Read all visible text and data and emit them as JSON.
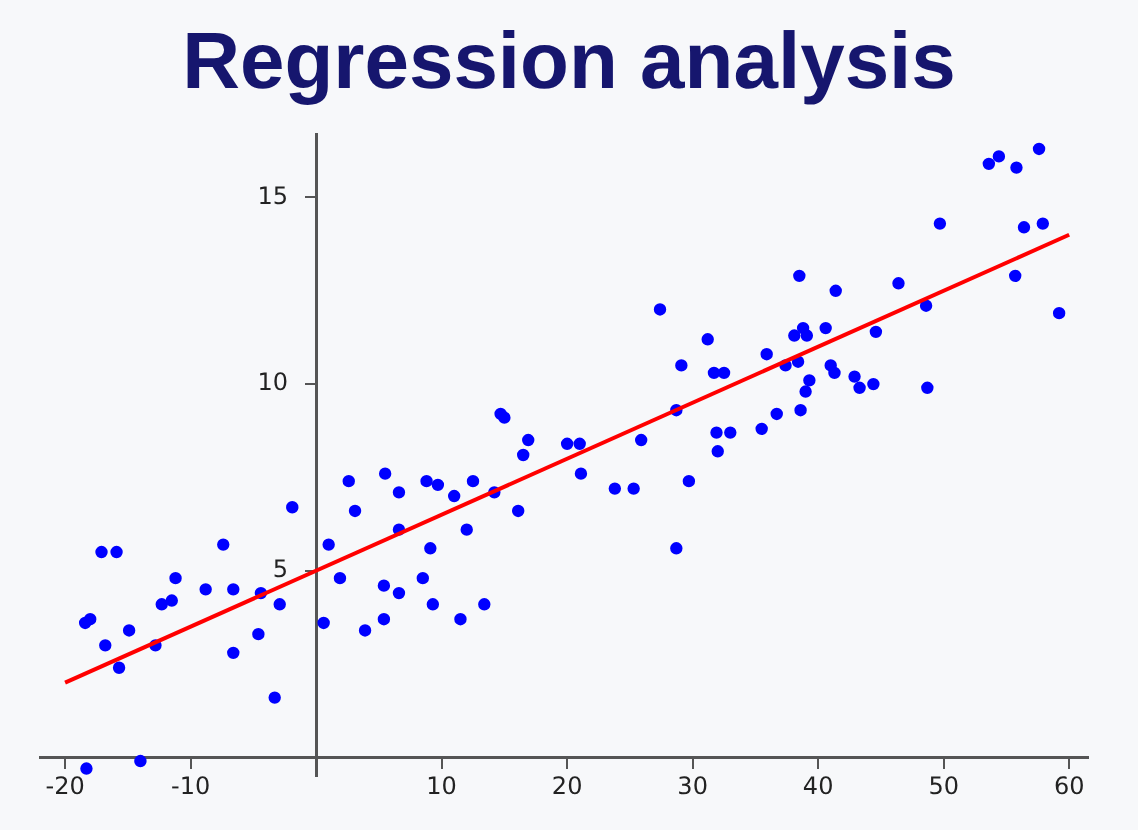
{
  "chart_data": {
    "type": "scatter",
    "title": "Regression analysis",
    "xlim": [
      -22,
      61.5
    ],
    "ylim": [
      -0.5,
      16.7
    ],
    "xticks": [
      -20,
      -10,
      10,
      20,
      30,
      40,
      50,
      60
    ],
    "yticks": [
      5,
      10,
      15
    ],
    "grid": false,
    "legend": false,
    "series": [
      {
        "marker": "circle",
        "color": "#0000ff",
        "x": [
          -18.4,
          -18.0,
          -17.1,
          -15.9,
          -16.8,
          -15.7,
          -14.9,
          -14.0,
          -18.3,
          -12.8,
          -12.3,
          -11.5,
          -11.2,
          -8.8,
          -7.4,
          -6.6,
          -6.6,
          -4.6,
          -4.4,
          -3.3,
          -2.9,
          -1.9,
          0.6,
          1.0,
          1.9,
          2.6,
          3.1,
          3.9,
          5.4,
          5.4,
          5.5,
          6.6,
          6.6,
          6.6,
          8.5,
          8.8,
          9.1,
          9.3,
          9.7,
          11.0,
          12.0,
          11.5,
          12.5,
          13.4,
          14.2,
          14.7,
          15.0,
          16.1,
          16.5,
          16.9,
          20.0,
          21.0,
          21.1,
          23.8,
          25.3,
          25.9,
          27.4,
          28.7,
          28.7,
          29.1,
          29.7,
          31.2,
          31.7,
          32.5,
          31.9,
          32.0,
          33.0,
          35.5,
          35.9,
          36.7,
          37.4,
          38.1,
          38.4,
          38.5,
          38.6,
          38.8,
          39.1,
          39.0,
          39.3,
          40.6,
          41.0,
          41.3,
          41.4,
          42.9,
          43.3,
          44.4,
          44.6,
          46.4,
          48.6,
          48.7,
          49.7,
          53.6,
          54.4,
          55.8,
          57.6,
          55.7,
          56.4,
          57.9,
          59.2
        ],
        "values": [
          3.6,
          3.7,
          5.5,
          5.5,
          3.0,
          2.4,
          3.4,
          -0.1,
          -0.3,
          3.0,
          4.1,
          4.2,
          4.8,
          4.5,
          5.7,
          4.5,
          2.8,
          3.3,
          4.4,
          1.6,
          4.1,
          6.7,
          3.6,
          5.7,
          4.8,
          7.4,
          6.6,
          3.4,
          4.6,
          3.7,
          7.6,
          7.1,
          4.4,
          6.1,
          4.8,
          7.4,
          5.6,
          4.1,
          7.3,
          7.0,
          6.1,
          3.7,
          7.4,
          4.1,
          7.1,
          9.2,
          9.1,
          6.6,
          8.1,
          8.5,
          8.4,
          8.4,
          7.6,
          7.2,
          7.2,
          8.5,
          12.0,
          5.6,
          9.3,
          10.5,
          7.4,
          11.2,
          10.3,
          10.3,
          8.7,
          8.2,
          8.7,
          8.8,
          10.8,
          9.2,
          10.5,
          11.3,
          10.6,
          12.9,
          9.3,
          11.5,
          11.3,
          9.8,
          10.1,
          11.5,
          10.5,
          10.3,
          12.5,
          10.2,
          9.9,
          10.0,
          11.4,
          12.7,
          12.1,
          9.9,
          14.3,
          15.9,
          16.1,
          15.8,
          16.3,
          12.9,
          14.2,
          14.3,
          11.9
        ]
      },
      {
        "type": "line",
        "color": "#ff0000",
        "x": [
          -20,
          60
        ],
        "values": [
          2.0,
          14.0
        ]
      }
    ]
  }
}
